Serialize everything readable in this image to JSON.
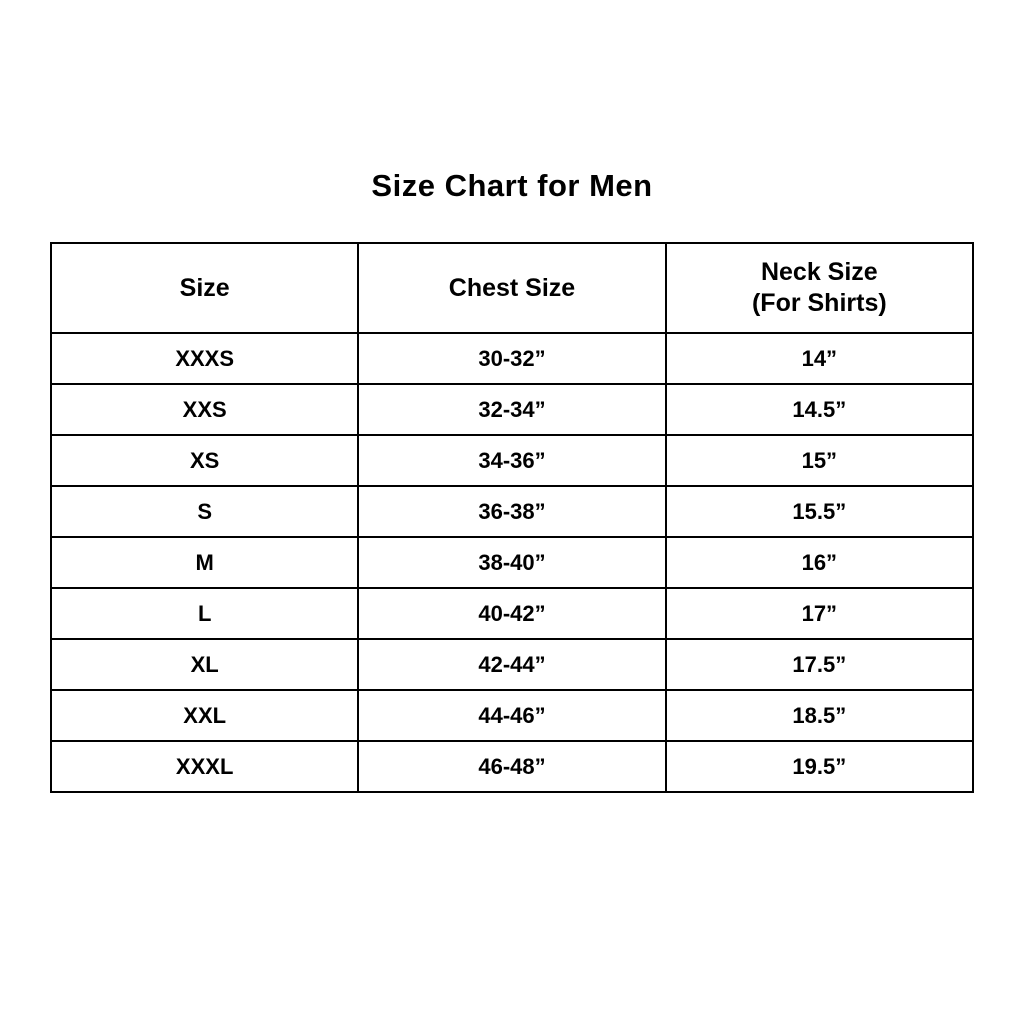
{
  "title": "Size Chart for Men",
  "table": {
    "headers": [
      {
        "line1": "Size",
        "line2": ""
      },
      {
        "line1": "Chest Size",
        "line2": ""
      },
      {
        "line1": "Neck Size",
        "line2": "(For Shirts)"
      }
    ],
    "rows": [
      {
        "size": "XXXS",
        "chest": "30-32”",
        "neck": "14”"
      },
      {
        "size": "XXS",
        "chest": "32-34”",
        "neck": "14.5”"
      },
      {
        "size": "XS",
        "chest": "34-36”",
        "neck": "15”"
      },
      {
        "size": "S",
        "chest": "36-38”",
        "neck": "15.5”"
      },
      {
        "size": "M",
        "chest": "38-40”",
        "neck": "16”"
      },
      {
        "size": "L",
        "chest": "40-42”",
        "neck": "17”"
      },
      {
        "size": "XL",
        "chest": "42-44”",
        "neck": "17.5”"
      },
      {
        "size": "XXL",
        "chest": "44-46”",
        "neck": "18.5”"
      },
      {
        "size": "XXXL",
        "chest": "46-48”",
        "neck": "19.5”"
      }
    ]
  },
  "colors": {
    "background": "#ffffff",
    "text": "#000000",
    "border": "#000000"
  },
  "chart_data": {
    "type": "table",
    "title": "Size Chart for Men",
    "columns": [
      "Size",
      "Chest Size",
      "Neck Size (For Shirts)"
    ],
    "rows": [
      [
        "XXXS",
        "30-32”",
        "14”"
      ],
      [
        "XXS",
        "32-34”",
        "14.5”"
      ],
      [
        "XS",
        "34-36”",
        "15”"
      ],
      [
        "S",
        "36-38”",
        "15.5”"
      ],
      [
        "M",
        "38-40”",
        "16”"
      ],
      [
        "L",
        "40-42”",
        "17”"
      ],
      [
        "XL",
        "42-44”",
        "17.5”"
      ],
      [
        "XXL",
        "44-46”",
        "18.5”"
      ],
      [
        "XXXL",
        "46-48”",
        "19.5”"
      ]
    ]
  }
}
